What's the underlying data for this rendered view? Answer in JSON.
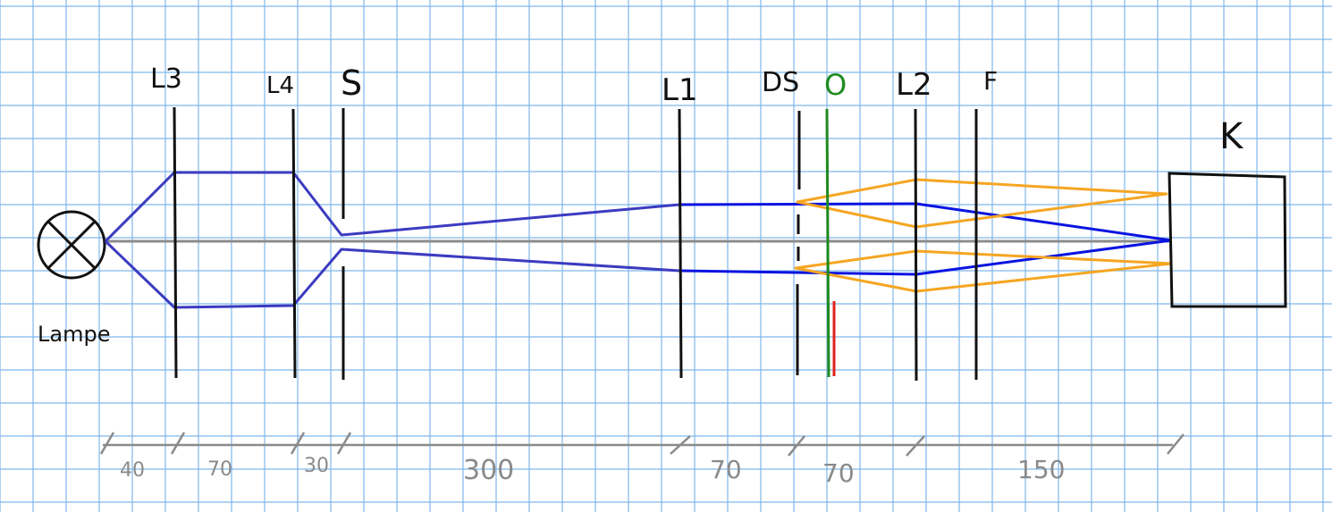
{
  "labels": {
    "lamp": "Lampe",
    "l3": "L3",
    "l4": "L4",
    "s": "S",
    "l1": "L1",
    "ds": "DS",
    "o": "O",
    "l2": "L2",
    "f": "F",
    "k": "K"
  },
  "dimensions": [
    "40",
    "70",
    "30",
    "300",
    "70",
    "70",
    "150"
  ],
  "colors": {
    "grid": "#7fb6ea",
    "ink": "#111111",
    "axis": "#8c8c8c",
    "beam_illumination": "#3b3bc0",
    "beam_imaging": "#0a14e0",
    "beam_orange": "#f5a623",
    "object_plane": "#1f8a1f",
    "object_mark": "#e02020",
    "dimension": "#8a8a8a"
  }
}
